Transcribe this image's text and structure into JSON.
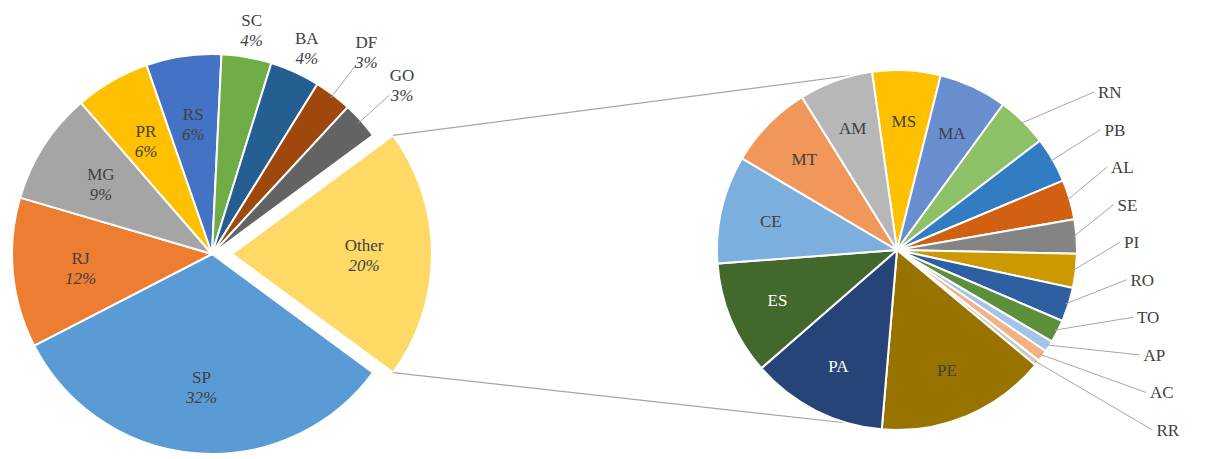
{
  "chart_data": [
    {
      "type": "pie",
      "categories": [
        "SP",
        "RJ",
        "MG",
        "PR",
        "RS",
        "SC",
        "BA",
        "DF",
        "GO",
        "Other"
      ],
      "values": [
        32,
        12,
        9,
        6,
        6,
        4,
        4,
        3,
        3,
        20
      ],
      "value_labels": [
        "32%",
        "12%",
        "9%",
        "6%",
        "6%",
        "4%",
        "4%",
        "3%",
        "3%",
        "20%"
      ],
      "colors": [
        "#5b9bd5",
        "#ed7d31",
        "#a5a5a5",
        "#ffc000",
        "#4472c4",
        "#70ad47",
        "#255e91",
        "#9e480e",
        "#636363",
        "#ffd966"
      ],
      "data_labels": true
    },
    {
      "type": "pie",
      "categories": [
        "MS",
        "MA",
        "RN",
        "PB",
        "AL",
        "SE",
        "PI",
        "RO",
        "TO",
        "AP",
        "AC",
        "RR",
        "PE",
        "PA",
        "ES",
        "CE",
        "MT",
        "AM"
      ],
      "values": [
        1.2,
        1.2,
        0.9,
        0.8,
        0.7,
        0.6,
        0.6,
        0.6,
        0.4,
        0.2,
        0.2,
        0.1,
        3.0,
        2.4,
        2.0,
        1.9,
        1.5,
        1.3
      ],
      "colors": [
        "#ffc000",
        "#698ed0",
        "#8cc168",
        "#327dc2",
        "#d26012",
        "#848484",
        "#cc9a00",
        "#2e5fa3",
        "#5d8f3a",
        "#a3c4e8",
        "#f4b183",
        "#c9c9c9",
        "#997300",
        "#264478",
        "#43682b",
        "#7cafdd",
        "#f1975a",
        "#b7b7b7"
      ],
      "data_labels": false
    }
  ]
}
